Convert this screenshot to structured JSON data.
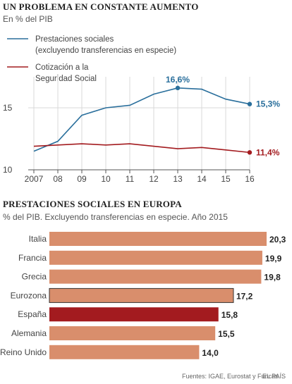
{
  "chart_data": [
    {
      "type": "line",
      "title": "UN PROBLEMA EN CONSTANTE AUMENTO",
      "subtitle": "En % del PIB",
      "x": [
        "2007",
        "08",
        "09",
        "10",
        "11",
        "12",
        "13",
        "14",
        "15",
        "16"
      ],
      "ylim": [
        10,
        17.5
      ],
      "yticks": [
        10,
        15
      ],
      "grid": true,
      "legend_position": "top-left",
      "series": [
        {
          "name": "Prestaciones sociales (excluyendo transferencias en especie)",
          "legend_lines": [
            "Prestaciones sociales",
            "(excluyendo transferencias en especie)"
          ],
          "color": "#2a6f9c",
          "values": [
            11.5,
            12.3,
            14.4,
            15.0,
            15.2,
            16.1,
            16.6,
            16.5,
            15.7,
            15.3
          ]
        },
        {
          "name": "Cotización a la Seguridad Social",
          "legend_lines": [
            "Cotización a la",
            "Seguridad Social"
          ],
          "color": "#a31b1f",
          "values": [
            11.9,
            12.0,
            12.1,
            12.0,
            12.1,
            11.9,
            11.7,
            11.8,
            11.6,
            11.4
          ]
        }
      ],
      "annotations": [
        {
          "series": 0,
          "index": 6,
          "label": "16,6%",
          "position": "above"
        },
        {
          "series": 0,
          "index": 9,
          "label": "15,3%",
          "position": "right"
        },
        {
          "series": 1,
          "index": 9,
          "label": "11,4%",
          "position": "right"
        }
      ]
    },
    {
      "type": "bar",
      "orientation": "horizontal",
      "title": "PRESTACIONES SOCIALES EN EUROPA",
      "subtitle": "% del PIB. Excluyendo transferencias en especie. Año 2015",
      "categories": [
        "Italia",
        "Francia",
        "Grecia",
        "Eurozona",
        "España",
        "Alemania",
        "Reino Unido"
      ],
      "values": [
        20.3,
        19.9,
        19.8,
        17.2,
        15.8,
        15.5,
        14.0
      ],
      "value_labels": [
        "20,3",
        "19,9",
        "19,8",
        "17,2",
        "15,8",
        "15,5",
        "14,0"
      ],
      "xlim": [
        0,
        20.3
      ],
      "colors": {
        "default": "#d98e6c",
        "highlight": "#a31b1f",
        "eurozona_outline": "#333333"
      },
      "highlight": [
        "España"
      ],
      "outlined": [
        "Eurozona"
      ]
    }
  ],
  "footer": {
    "source": "Fuentes: IGAE, Eurostat y Funcas. .",
    "brand": "EL PAÍS"
  }
}
